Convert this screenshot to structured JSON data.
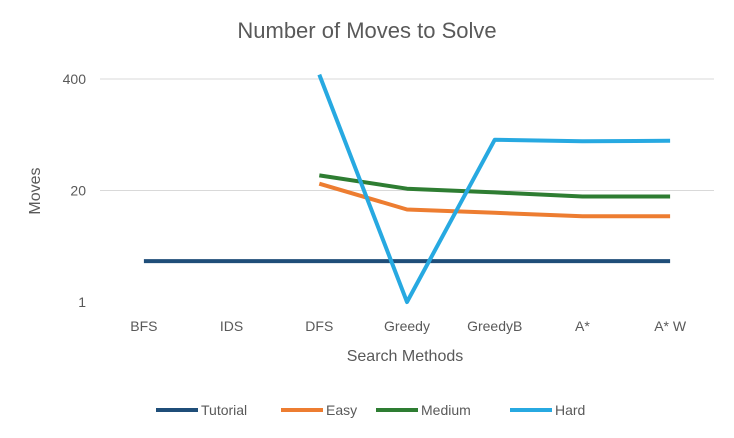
{
  "chart_data": {
    "type": "line",
    "title": "Number of Moves to Solve",
    "xlabel": "Search Methods",
    "ylabel": "Moves",
    "y_scale": "log",
    "ylim": [
      1,
      400
    ],
    "yticks": [
      {
        "value": 1,
        "label": "1"
      },
      {
        "value": 20,
        "label": "20"
      },
      {
        "value": 400,
        "label": "400"
      }
    ],
    "categories": [
      "BFS",
      "IDS",
      "DFS",
      "Greedy",
      "GreedyB",
      "A*",
      "A* W"
    ],
    "series": [
      {
        "name": "Tutorial",
        "color": "#1f4e79",
        "values": [
          3,
          3,
          3,
          3,
          3,
          3,
          3
        ]
      },
      {
        "name": "Easy",
        "color": "#ed7d31",
        "values": [
          null,
          null,
          24,
          12,
          11,
          10,
          10
        ]
      },
      {
        "name": "Medium",
        "color": "#2e7d32",
        "values": [
          null,
          null,
          30,
          21,
          19,
          17,
          17
        ]
      },
      {
        "name": "Hard",
        "color": "#27a9e1",
        "values": [
          null,
          null,
          450,
          1,
          78,
          75,
          76
        ]
      }
    ],
    "legend_position": "bottom",
    "grid": true
  }
}
